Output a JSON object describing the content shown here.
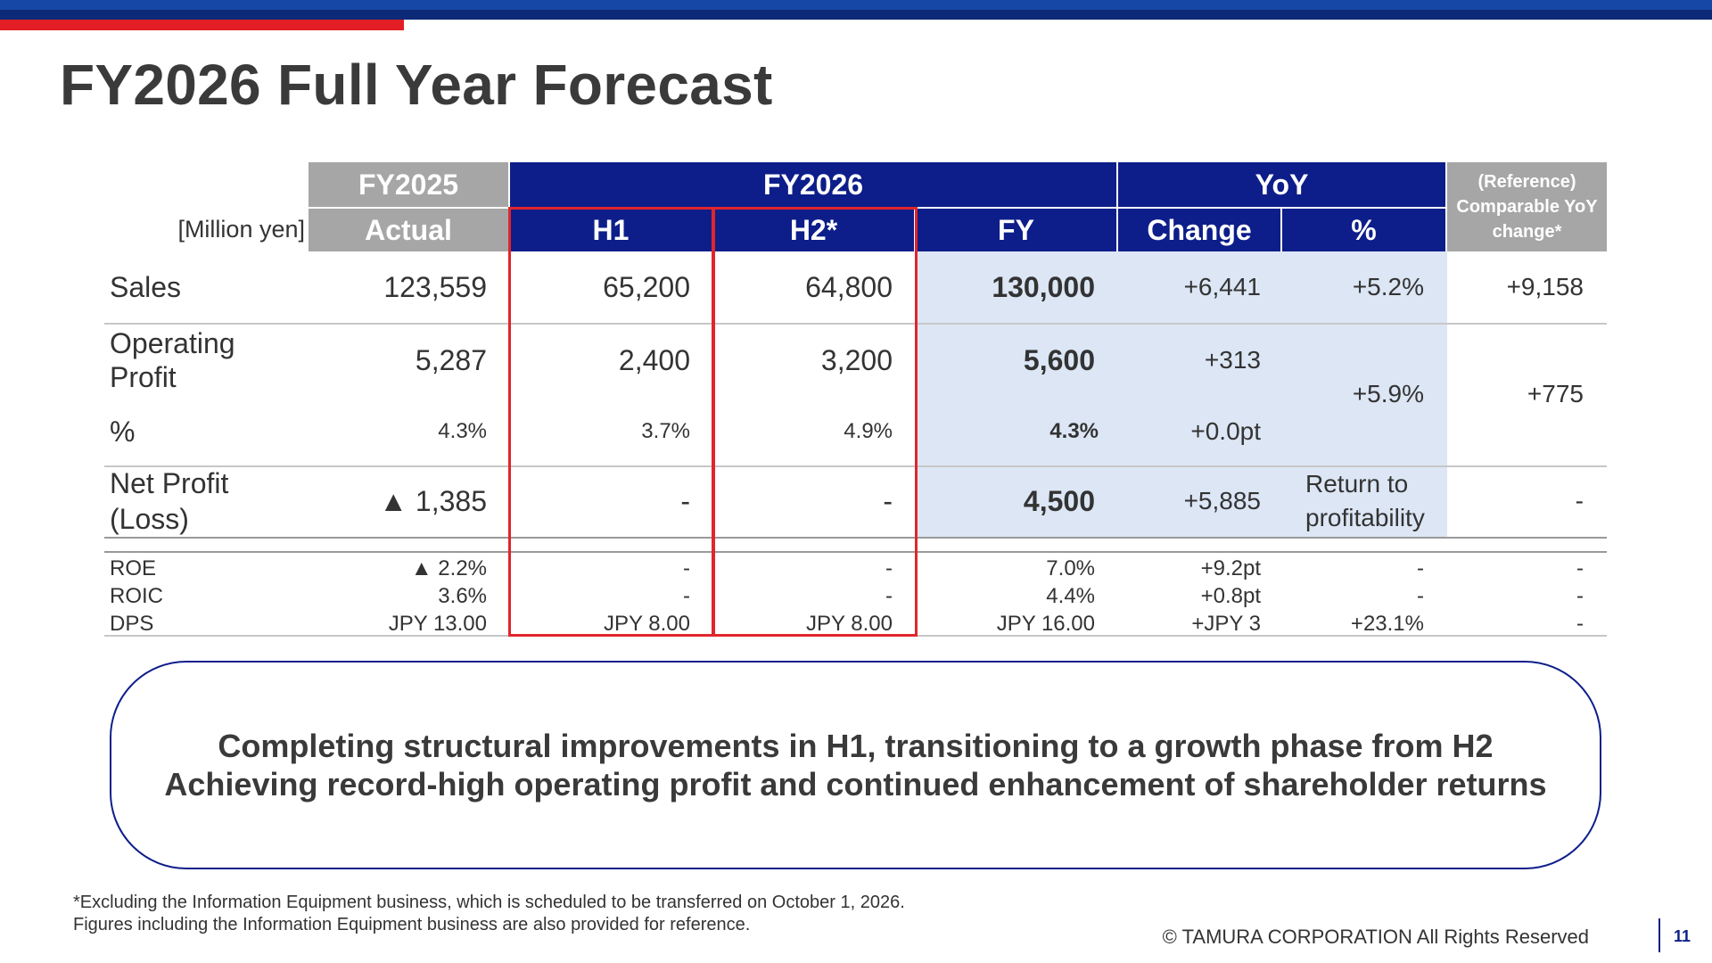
{
  "title": "FY2026 Full Year Forecast",
  "unit_label": "[Million yen]",
  "header": {
    "fy2025": "FY2025",
    "fy2025_sub": "Actual",
    "fy2026": "FY2026",
    "h1": "H1",
    "h2": "H2*",
    "fy": "FY",
    "yoy": "YoY",
    "change": "Change",
    "pct": "%",
    "ref": [
      "(Reference)",
      "Comparable YoY",
      "change*"
    ]
  },
  "rows": {
    "sales": {
      "label": "Sales",
      "actual": "123,559",
      "h1": "65,200",
      "h2": "64,800",
      "fy": "130,000",
      "change": "+6,441",
      "pct": "+5.2%",
      "ref": "+9,158"
    },
    "op": {
      "label1": "Operating",
      "label2": "Profit",
      "actual": "5,287",
      "h1": "2,400",
      "h2": "3,200",
      "fy": "5,600",
      "change": "+313",
      "pct": "+5.9%",
      "ref": "+775"
    },
    "op_margin": {
      "label": "%",
      "actual": "4.3%",
      "h1": "3.7%",
      "h2": "4.9%",
      "fy": "4.3%",
      "change": "+0.0pt"
    },
    "np": {
      "label1": "Net Profit",
      "label2": "(Loss)",
      "actual": "▲ 1,385",
      "h1": "-",
      "h2": "-",
      "fy": "4,500",
      "change": "+5,885",
      "pct1": "Return to",
      "pct2": "profitability",
      "ref": "-"
    },
    "roe": {
      "label": "ROE",
      "actual": "▲ 2.2%",
      "h1": "-",
      "h2": "-",
      "fy": "7.0%",
      "change": "+9.2pt",
      "pct": "-",
      "ref": "-"
    },
    "roic": {
      "label": "ROIC",
      "actual": "3.6%",
      "h1": "-",
      "h2": "-",
      "fy": "4.4%",
      "change": "+0.8pt",
      "pct": "-",
      "ref": "-"
    },
    "dps": {
      "label": "DPS",
      "actual": "JPY 13.00",
      "h1": "JPY 8.00",
      "h2": "JPY 8.00",
      "fy": "JPY 16.00",
      "change": "+JPY 3",
      "pct": "+23.1%",
      "ref": "-"
    }
  },
  "callout": {
    "line1": "Completing structural improvements in H1, transitioning to a growth phase from H2",
    "line2": "Achieving record-high operating profit and continued enhancement of shareholder returns"
  },
  "footnote": {
    "line1": "*Excluding the Information Equipment business, which is scheduled to be transferred on October 1, 2026.",
    "line2": "Figures including the Information Equipment business are also provided for reference."
  },
  "copyright": "© TAMURA CORPORATION All Rights Reserved",
  "page_number": "11",
  "colors": {
    "navy": "#0d1e8a",
    "gray_header": "#a6a6a6",
    "highlight": "#dce6f5",
    "red_accent": "#e31e24"
  }
}
